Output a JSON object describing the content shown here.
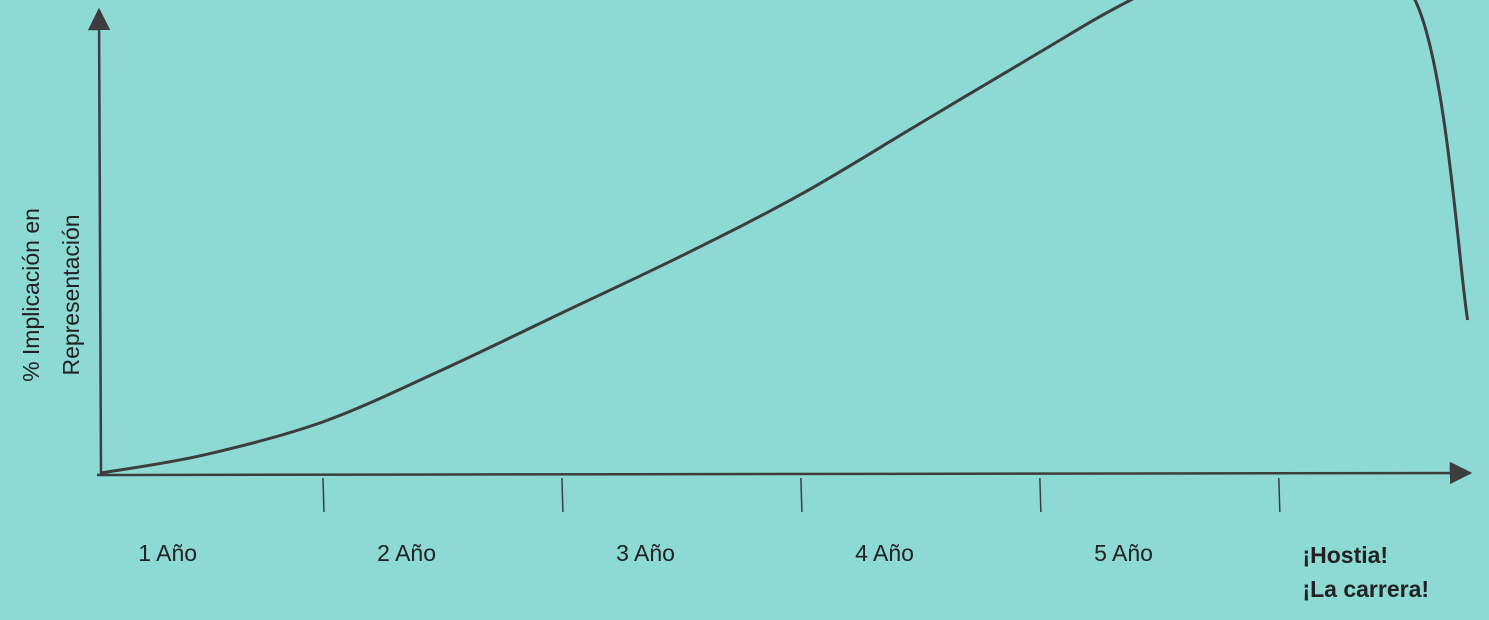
{
  "chart_data": {
    "type": "line",
    "ylabel": [
      "% Implicación en",
      "Representación"
    ],
    "categories": [
      "1 Año",
      "2 Año",
      "3 Año",
      "4 Año",
      "5 Año",
      [
        "¡Hostia!",
        "¡La carrera!"
      ]
    ],
    "x": [
      0.07,
      0.5,
      1,
      1.5,
      2,
      2.5,
      3,
      3.5,
      4,
      4.38,
      5,
      5.57,
      5.79
    ],
    "values": [
      0.2,
      4,
      11,
      22,
      34,
      46,
      59,
      74,
      89,
      100,
      115,
      100,
      32.5
    ],
    "color": "#3d3d3d",
    "xlim": [
      0,
      5.8
    ],
    "ylim": [
      0,
      100
    ],
    "xticks": [
      1,
      2,
      3,
      4,
      5
    ]
  }
}
